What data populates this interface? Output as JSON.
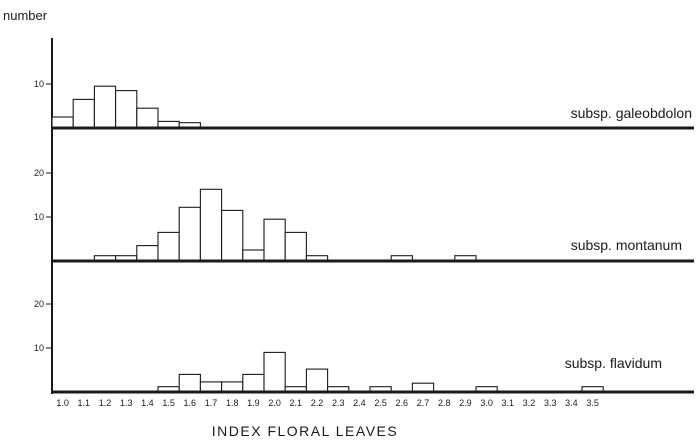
{
  "chart_data": {
    "type": "bar",
    "ylabel": "number",
    "xlabel": "INDEX FLORAL LEAVES",
    "categories": [
      "1.0",
      "1.1",
      "1.2",
      "1.3",
      "1.4",
      "1.5",
      "1.6",
      "1.7",
      "1.8",
      "1.9",
      "2.0",
      "2.1",
      "2.2",
      "2.3",
      "2.4",
      "2.5",
      "2.6",
      "2.7",
      "2.8",
      "2.9",
      "3.0",
      "3.1",
      "3.2",
      "3.3",
      "3.4",
      "3.5"
    ],
    "tick_labels": [
      "1.0",
      "1.1",
      "1.2",
      "1.3",
      "1.4",
      "1.5",
      "1.6",
      "1.7",
      "1.8",
      "1.9",
      "2.0",
      "2.1",
      "2.2",
      "2.3",
      "2.4",
      "2.5",
      "2.6",
      "2.7",
      "2.8",
      "2.9",
      "3.0",
      "3.1",
      "3.2",
      "3.3",
      "3.4",
      "3.5"
    ],
    "series": [
      {
        "name": "subsp. galeobdolon",
        "yticks": [
          10
        ],
        "ylim": [
          0,
          19
        ],
        "values": [
          2.5,
          6.5,
          9.5,
          8.5,
          4.5,
          1.5,
          1.2,
          0,
          0,
          0,
          0,
          0,
          0,
          0,
          0,
          0,
          0,
          0,
          0,
          0,
          0,
          0,
          0,
          0,
          0,
          0
        ]
      },
      {
        "name": "subsp. montanum",
        "yticks": [
          10,
          20
        ],
        "ylim": [
          0,
          23
        ],
        "values": [
          0,
          0,
          1.2,
          1.2,
          3.5,
          6.5,
          12.2,
          16.3,
          11.5,
          2.5,
          9.5,
          6.5,
          1.2,
          0,
          0,
          0,
          1.2,
          0,
          0,
          1.2,
          0,
          0,
          0,
          0,
          0,
          0
        ]
      },
      {
        "name": "subsp. flavidum",
        "yticks": [
          10,
          20
        ],
        "ylim": [
          0,
          23
        ],
        "values": [
          0,
          0,
          0,
          0,
          0,
          1.2,
          4,
          2.3,
          2.3,
          4,
          9,
          1.2,
          5.2,
          1.2,
          0,
          1.2,
          0,
          2,
          0,
          0,
          1.2,
          0,
          0,
          0,
          0,
          1.2
        ]
      }
    ]
  }
}
